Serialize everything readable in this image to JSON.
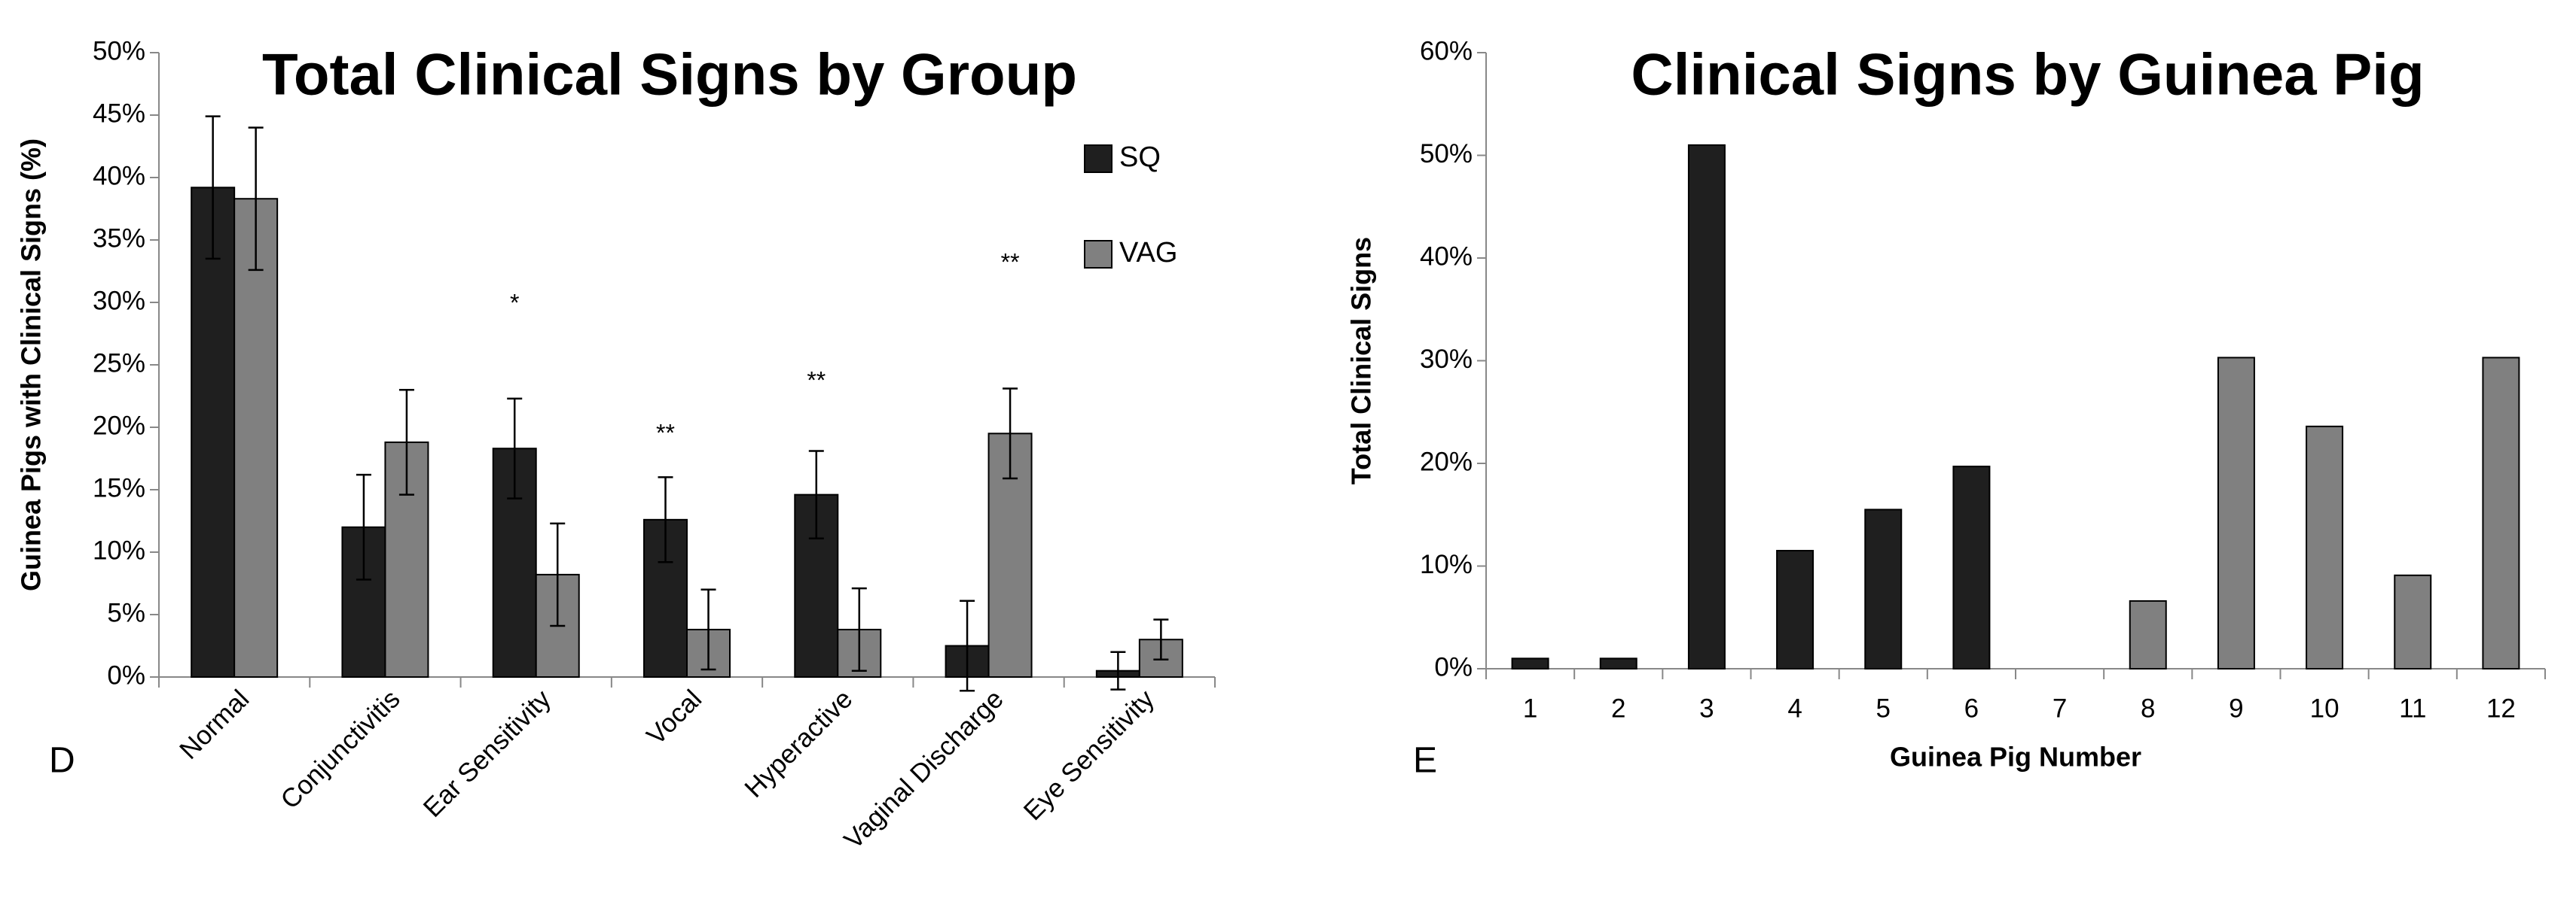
{
  "chart_data": [
    {
      "type": "bar",
      "title": "Total Clinical Signs by Group",
      "panel": "D",
      "ylabel": "Guinea Pigs with Clinical Signs (%)",
      "categories": [
        "Normal",
        "Conjunctivitis",
        "Ear Sensitivity",
        "Vocal",
        "Hyperactive",
        "Vaginal Discharge",
        "Eye Sensitivity"
      ],
      "series": [
        {
          "name": "SQ",
          "color": "#1f1f1f",
          "values": [
            39.2,
            12,
            18.3,
            12.6,
            14.6,
            2.5,
            0.5
          ],
          "errors": [
            5.7,
            4.2,
            4,
            3.4,
            3.5,
            3.6,
            1.5
          ]
        },
        {
          "name": "VAG",
          "color": "#808080",
          "values": [
            38.3,
            18.8,
            8.2,
            3.8,
            3.8,
            19.5,
            3
          ],
          "errors": [
            5.7,
            4.2,
            4.1,
            3.2,
            3.3,
            3.6,
            1.6
          ]
        }
      ],
      "ylim": [
        0,
        50
      ],
      "yticks": [
        {
          "value": 0,
          "label": "0%"
        },
        {
          "value": 5,
          "label": "5%"
        },
        {
          "value": 10,
          "label": "10%"
        },
        {
          "value": 15,
          "label": "15%"
        },
        {
          "value": 20,
          "label": "20%"
        },
        {
          "value": 25,
          "label": "25%"
        },
        {
          "value": 30,
          "label": "30%"
        },
        {
          "value": 35,
          "label": "35%"
        },
        {
          "value": 40,
          "label": "40%"
        },
        {
          "value": 45,
          "label": "45%"
        },
        {
          "value": 50,
          "label": "50%"
        }
      ],
      "annotations": [
        "*",
        "**",
        "**",
        "**"
      ],
      "legend": "upper right"
    },
    {
      "type": "bar",
      "title": "Clinical Signs by Guinea Pig",
      "panel": "E",
      "xlabel": "Guinea Pig Number",
      "ylabel": "Total Clinical Signs",
      "categories": [
        "1",
        "2",
        "3",
        "4",
        "5",
        "6",
        "7",
        "8",
        "9",
        "10",
        "11",
        "12"
      ],
      "values": [
        1,
        1,
        51,
        11.5,
        15.5,
        19.7,
        0,
        6.6,
        30.3,
        23.6,
        9.1,
        30.3
      ],
      "colors": [
        "#1f1f1f",
        "#1f1f1f",
        "#1f1f1f",
        "#1f1f1f",
        "#1f1f1f",
        "#1f1f1f",
        "#808080",
        "#808080",
        "#808080",
        "#808080",
        "#808080",
        "#808080"
      ],
      "ylim": [
        0,
        60
      ],
      "yticks": [
        {
          "value": 0,
          "label": "0%"
        },
        {
          "value": 10,
          "label": "10%"
        },
        {
          "value": 20,
          "label": "20%"
        },
        {
          "value": 30,
          "label": "30%"
        },
        {
          "value": 40,
          "label": "40%"
        },
        {
          "value": 50,
          "label": "50%"
        },
        {
          "value": 60,
          "label": "60%"
        }
      ]
    }
  ]
}
